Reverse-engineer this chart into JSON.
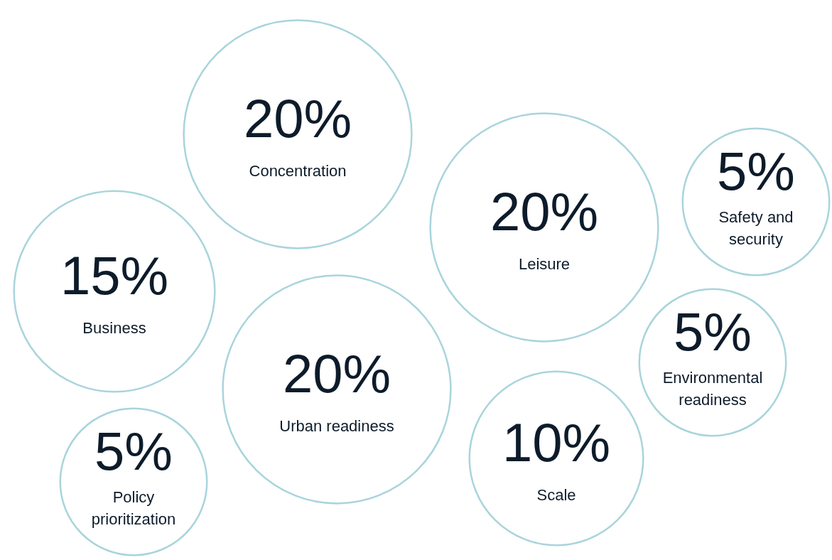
{
  "chart_data": {
    "type": "other",
    "categories": [
      "Concentration",
      "Leisure",
      "Safety and security",
      "Business",
      "Urban readiness",
      "Environmental readiness",
      "Scale",
      "Policy prioritization"
    ],
    "values": [
      20,
      20,
      5,
      15,
      20,
      5,
      10,
      5
    ],
    "value_labels": [
      "20%",
      "20%",
      "5%",
      "15%",
      "20%",
      "5%",
      "10%",
      "5%"
    ],
    "color": "#a9d4dc"
  }
}
